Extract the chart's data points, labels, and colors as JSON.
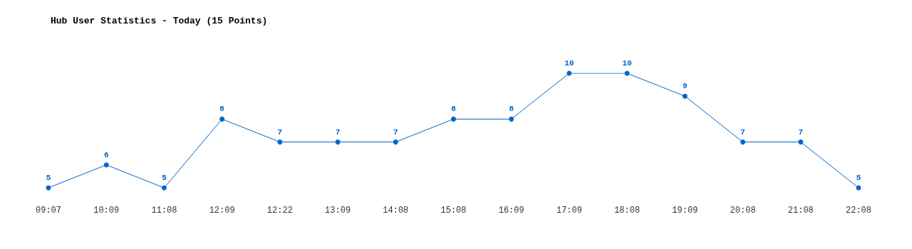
{
  "chart_data": {
    "type": "line",
    "title": "Hub User Statistics - Today (15 Points)",
    "categories": [
      "09:07",
      "10:09",
      "11:08",
      "12:09",
      "12:22",
      "13:09",
      "14:08",
      "15:08",
      "16:09",
      "17:09",
      "18:08",
      "19:09",
      "20:08",
      "21:08",
      "22:08"
    ],
    "series": [
      {
        "color": "#0066cc",
        "values": [
          5,
          6,
          5,
          8,
          7,
          7,
          7,
          8,
          8,
          10,
          10,
          9,
          7,
          7,
          5
        ]
      }
    ],
    "data_labels": true,
    "marker": "circle",
    "line_style": "solid",
    "tick_labels": "x"
  }
}
